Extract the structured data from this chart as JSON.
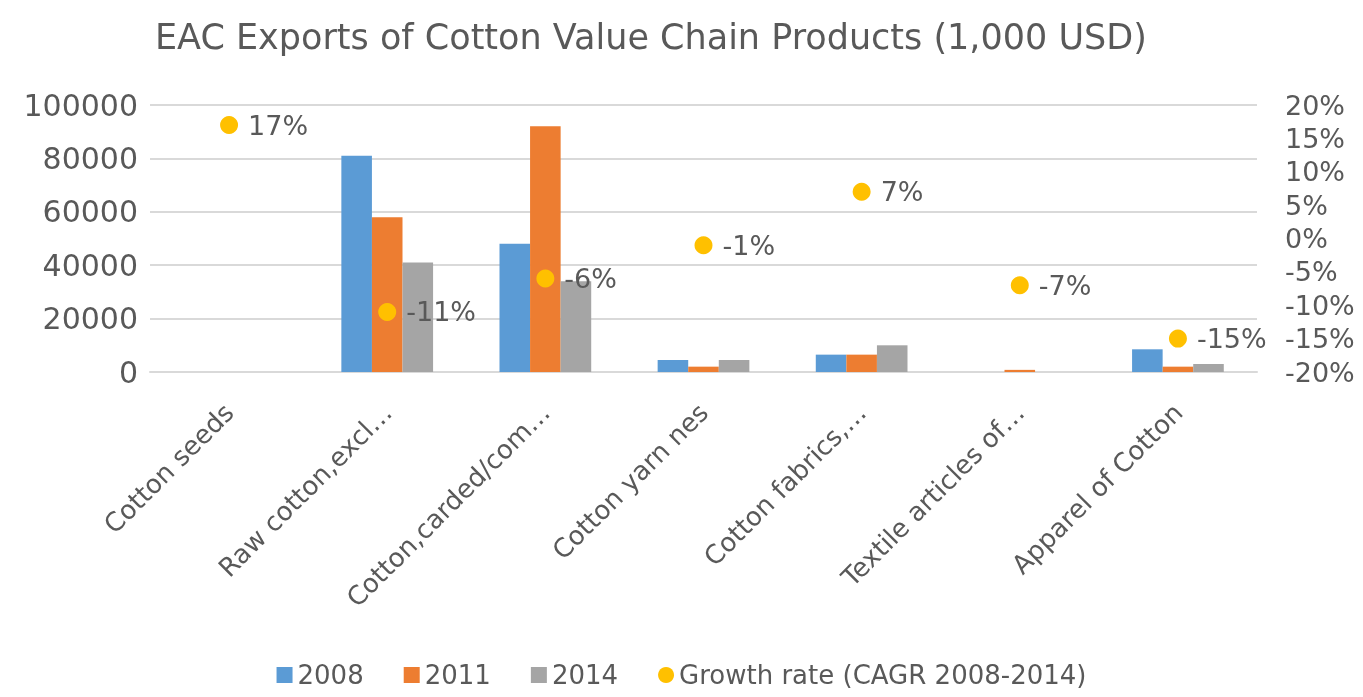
{
  "chart_data": {
    "type": "bar",
    "title": "EAC Exports of Cotton Value Chain Products (1,000 USD)",
    "categories": [
      "Cotton seeds",
      "Raw cotton,excl…",
      "Cotton,carded/com…",
      "Cotton yarn nes",
      "Cotton fabrics,…",
      "Textile articles of…",
      "Apparel of Cotton"
    ],
    "series": [
      {
        "name": "2008",
        "color": "#5b9bd5",
        "values": [
          null,
          81000,
          48000,
          4500,
          6500,
          null,
          8500
        ]
      },
      {
        "name": "2011",
        "color": "#ed7d31",
        "values": [
          null,
          58000,
          92000,
          2000,
          6500,
          800,
          2000
        ]
      },
      {
        "name": "2014",
        "color": "#a5a5a5",
        "values": [
          null,
          41000,
          34000,
          4500,
          10000,
          null,
          3000
        ]
      },
      {
        "name": "Growth rate (CAGR 2008-2014)",
        "type": "scatter",
        "axis": "y2",
        "color": "#ffc000",
        "x": [
          "Cotton seeds",
          "Raw cotton,excl…",
          "Cotton,carded/com…",
          "Cotton yarn nes",
          "Cotton fabrics,…",
          "Textile articles of…",
          "Apparel of Cotton"
        ],
        "values": [
          17,
          -11,
          -6,
          -1,
          7,
          -7,
          -15
        ],
        "value_labels": [
          "17%",
          "-11%",
          "-6%",
          "-1%",
          "7%",
          "-7%",
          "-15%"
        ]
      }
    ],
    "ylim": [
      0,
      100000
    ],
    "yticks": [
      0,
      20000,
      40000,
      60000,
      80000,
      100000
    ],
    "y2lim": [
      -20,
      20
    ],
    "y2ticks": [
      {
        "value": -20,
        "label": "-20%"
      },
      {
        "value": -15,
        "label": "-15%"
      },
      {
        "value": -10,
        "label": "-10%"
      },
      {
        "value": -5,
        "label": "-5%"
      },
      {
        "value": 0,
        "label": "0%"
      },
      {
        "value": 5,
        "label": "5%"
      },
      {
        "value": 10,
        "label": "10%"
      },
      {
        "value": 15,
        "label": "15%"
      },
      {
        "value": 20,
        "label": "20%"
      }
    ],
    "grid": "y",
    "legend": "bottom",
    "marker": "circle"
  }
}
